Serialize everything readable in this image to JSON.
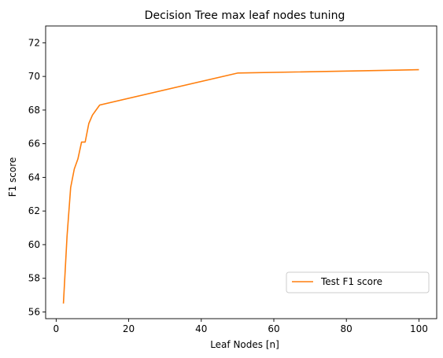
{
  "chart_data": {
    "type": "line",
    "title": "Decision Tree max leaf nodes tuning",
    "xlabel": "Leaf Nodes [n]",
    "ylabel": "F1 score",
    "xlim": [
      -2.9,
      104.9
    ],
    "ylim": [
      55.6,
      73.0
    ],
    "xticks": [
      0,
      20,
      40,
      60,
      80,
      100
    ],
    "yticks": [
      56,
      58,
      60,
      62,
      64,
      66,
      68,
      70,
      72
    ],
    "grid": false,
    "legend_position": "lower-right",
    "series": [
      {
        "name": "Test F1 score",
        "color": "#ff7f0e",
        "x": [
          2,
          3,
          4,
          5,
          6,
          7,
          8,
          9,
          10,
          11,
          12,
          50,
          100
        ],
        "y": [
          56.5,
          60.5,
          63.4,
          64.5,
          65.1,
          66.1,
          66.1,
          67.2,
          67.7,
          68.0,
          68.3,
          70.2,
          70.4
        ]
      }
    ]
  }
}
